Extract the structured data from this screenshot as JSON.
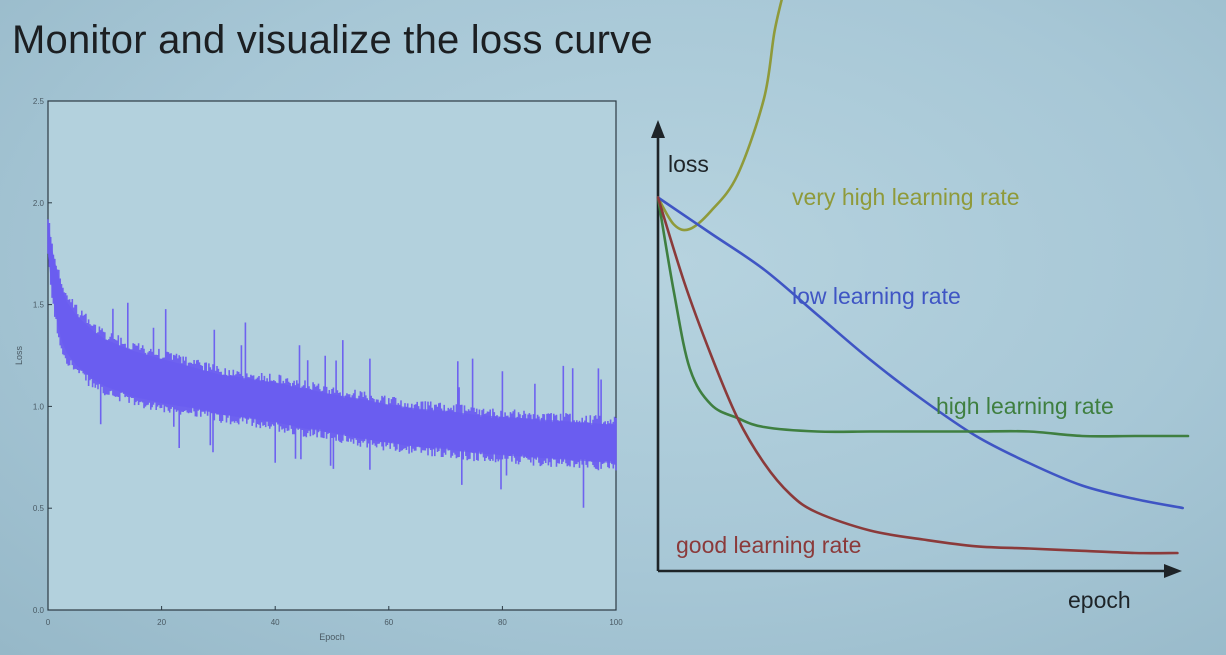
{
  "slide": {
    "title": "Monitor and visualize the loss curve"
  },
  "chart_data": [
    {
      "type": "line",
      "title": "",
      "xlabel": "Epoch",
      "ylabel": "Loss",
      "xlim": [
        0,
        100
      ],
      "ylim": [
        0.0,
        2.5
      ],
      "x_ticks": [
        "0",
        "20",
        "40",
        "60",
        "80",
        "100"
      ],
      "y_ticks": [
        "0.0",
        "0.5",
        "1.0",
        "1.5",
        "2.0",
        "2.5"
      ],
      "grid": false,
      "series": [
        {
          "color": "#6a5cf0",
          "x": [
            0,
            1,
            2,
            3,
            5,
            8,
            10,
            15,
            20,
            25,
            30,
            35,
            40,
            45,
            50,
            55,
            60,
            65,
            70,
            75,
            80,
            85,
            90,
            95,
            100
          ],
          "y_low": [
            1.7,
            1.45,
            1.3,
            1.22,
            1.15,
            1.08,
            1.05,
            1.0,
            0.97,
            0.95,
            0.92,
            0.9,
            0.88,
            0.85,
            0.83,
            0.8,
            0.78,
            0.76,
            0.75,
            0.73,
            0.72,
            0.71,
            0.7,
            0.69,
            0.68
          ],
          "y_high": [
            1.95,
            1.78,
            1.68,
            1.58,
            1.5,
            1.42,
            1.38,
            1.32,
            1.28,
            1.24,
            1.2,
            1.18,
            1.16,
            1.13,
            1.1,
            1.08,
            1.05,
            1.03,
            1.02,
            1.0,
            0.99,
            0.98,
            0.97,
            0.96,
            0.95
          ]
        }
      ]
    },
    {
      "type": "line",
      "title": "",
      "xlabel": "epoch",
      "ylabel": "loss",
      "x_ticks": [],
      "y_ticks": [],
      "grid": false,
      "series": [
        {
          "name": "very high learning rate",
          "color": "#8f9a3a",
          "x": [
            0,
            0.03,
            0.06,
            0.1,
            0.15,
            0.2,
            0.22,
            0.24
          ],
          "y": [
            0.83,
            0.77,
            0.76,
            0.8,
            0.88,
            1.05,
            1.2,
            1.3
          ]
        },
        {
          "name": "low learning rate",
          "color": "#3f55c4",
          "x": [
            0,
            0.1,
            0.2,
            0.3,
            0.4,
            0.5,
            0.6,
            0.7,
            0.8,
            0.9,
            0.99
          ],
          "y": [
            0.83,
            0.75,
            0.67,
            0.57,
            0.47,
            0.38,
            0.3,
            0.24,
            0.19,
            0.16,
            0.14
          ]
        },
        {
          "name": "high learning rate",
          "color": "#3f7f40",
          "x": [
            0,
            0.03,
            0.06,
            0.1,
            0.15,
            0.2,
            0.3,
            0.4,
            0.5,
            0.6,
            0.7,
            0.8,
            0.9,
            1.0
          ],
          "y": [
            0.83,
            0.62,
            0.45,
            0.37,
            0.34,
            0.32,
            0.31,
            0.31,
            0.31,
            0.31,
            0.31,
            0.3,
            0.3,
            0.3
          ]
        },
        {
          "name": "good learning rate",
          "color": "#8b3a3a",
          "x": [
            0,
            0.05,
            0.1,
            0.15,
            0.2,
            0.25,
            0.3,
            0.4,
            0.5,
            0.6,
            0.7,
            0.8,
            0.9,
            0.98
          ],
          "y": [
            0.83,
            0.64,
            0.48,
            0.34,
            0.24,
            0.17,
            0.13,
            0.09,
            0.07,
            0.055,
            0.05,
            0.045,
            0.04,
            0.04
          ]
        }
      ]
    }
  ]
}
